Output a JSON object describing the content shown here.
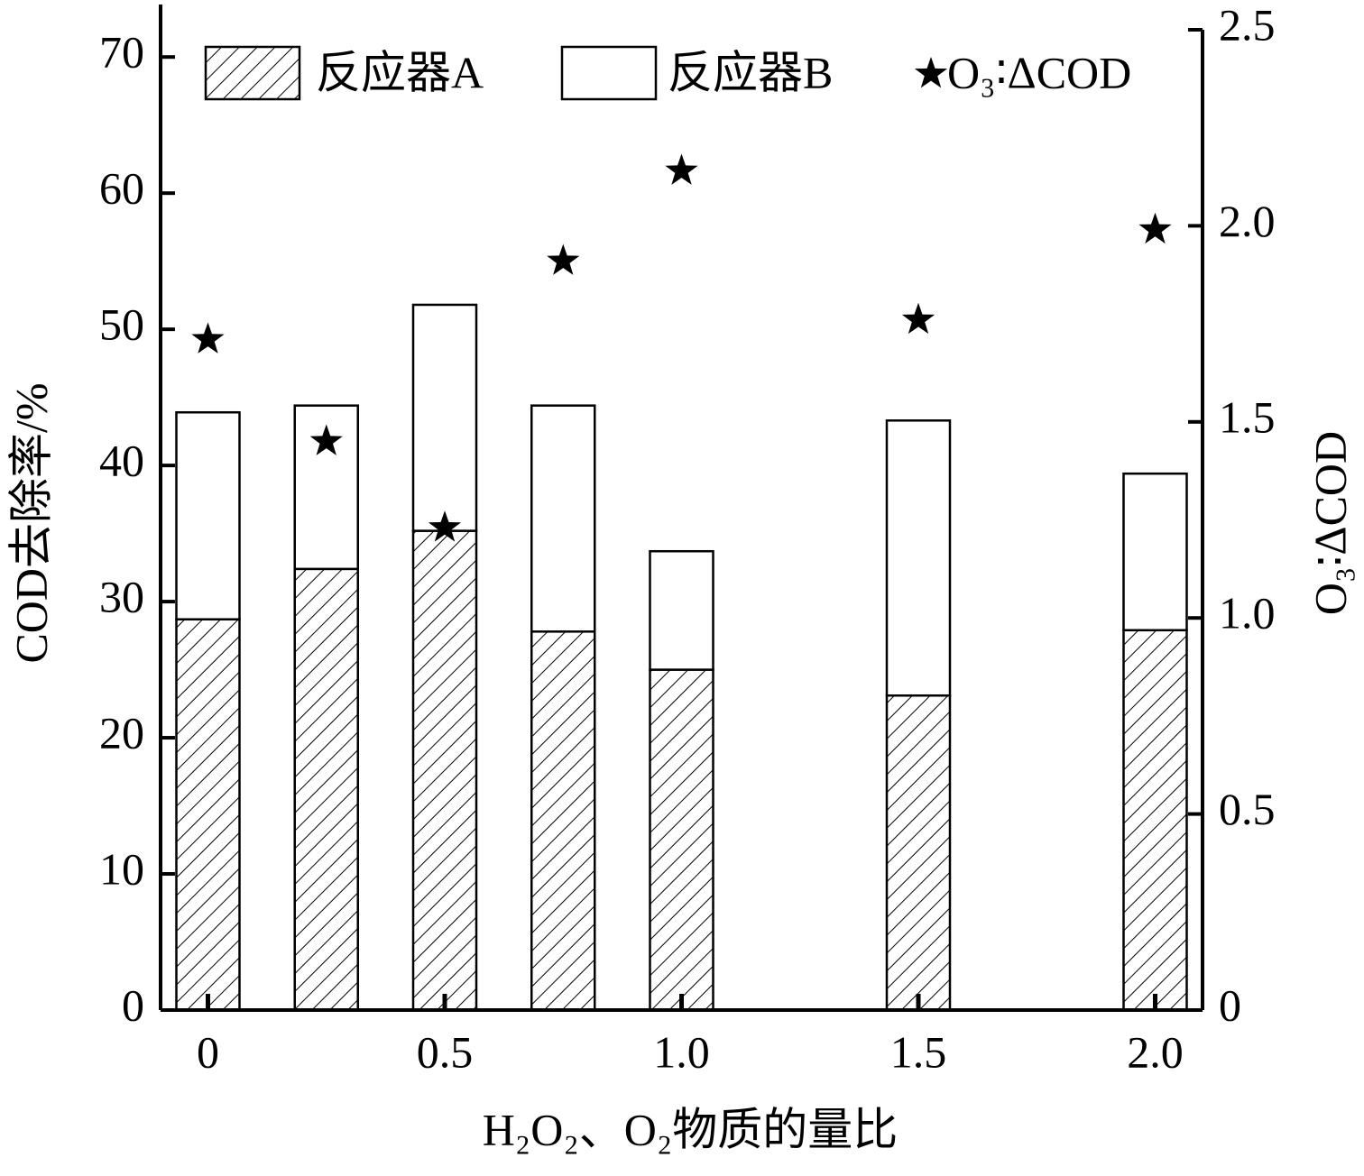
{
  "chart_data": {
    "type": "bar",
    "stacked": true,
    "ylabel": "COD去除率/%",
    "y2label": "O₃∶ΔCOD",
    "xlabel": "H₂O₂、O₂物质的量比",
    "x": [
      0,
      0.25,
      0.5,
      0.75,
      1,
      1.5,
      2
    ],
    "xlim": [
      -0.1,
      2.1
    ],
    "xticks": [
      0,
      0.5,
      {
        "value": 1,
        "label": "1.0"
      },
      1.5,
      {
        "value": 2,
        "label": "2.0"
      }
    ],
    "ylim": [
      0,
      72
    ],
    "yticks": [
      0,
      10,
      20,
      30,
      40,
      50,
      60,
      70
    ],
    "y2lim": [
      0,
      2.5
    ],
    "y2ticks": [
      0,
      0.5,
      {
        "value": 1,
        "label": "1.0"
      },
      1.5,
      {
        "value": 2,
        "label": "2.0"
      },
      2.5
    ],
    "legend": "top",
    "series": [
      {
        "name": "反应器A",
        "type": "bar",
        "hatch": true,
        "color": "#000000",
        "values": [
          28.7,
          32.4,
          35.2,
          27.8,
          25.0,
          23.1,
          27.9
        ]
      },
      {
        "name": "反应器B",
        "type": "bar",
        "color": "#ffffff",
        "values": [
          15.2,
          12.0,
          16.6,
          16.6,
          8.7,
          20.2,
          11.5
        ]
      },
      {
        "name": "O₃∶ΔCOD",
        "type": "scatter",
        "marker": "star",
        "axis": "y2",
        "color": "#000000",
        "values": [
          1.71,
          1.45,
          1.23,
          1.91,
          2.14,
          1.76,
          1.99
        ]
      }
    ]
  }
}
